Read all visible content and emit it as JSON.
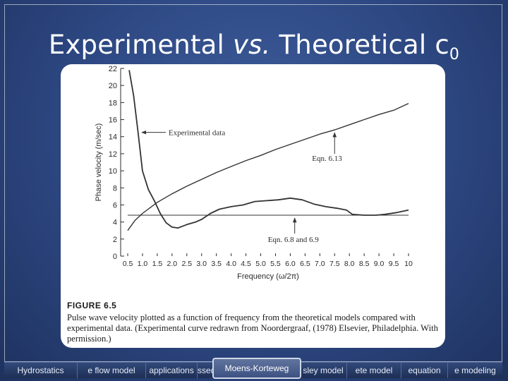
{
  "slide": {
    "title_main": "Experimental ",
    "title_vs": "vs.",
    "title_rest": " Theoretical c",
    "title_sub": "0"
  },
  "figure": {
    "label": "FIGURE 6.5",
    "caption": "Pulse wave velocity plotted as a function of frequency from the theoretical models compared with experimental data. (Experimental curve redrawn from Noordergraaf, (1978) Elsevier, Philadelphia. With permission.)"
  },
  "chart_data": {
    "type": "line",
    "xlabel": "Frequency (ω/2π)",
    "ylabel": "Phase velocity (m/sec)",
    "xlim": [
      0.5,
      10
    ],
    "ylim": [
      0,
      22
    ],
    "xticks": [
      "0.5",
      "1.0",
      "1.5",
      "2.0",
      "2.5",
      "3.0",
      "3.5",
      "4.0",
      "4.5",
      "5.0",
      "5.5",
      "6.0",
      "6.5",
      "7.0",
      "7.5",
      "8.0",
      "8.5",
      "9.0",
      "9.5",
      "10"
    ],
    "yticks": [
      "0",
      "2",
      "4",
      "6",
      "8",
      "10",
      "12",
      "14",
      "16",
      "18",
      "20",
      "22"
    ],
    "series": [
      {
        "name": "Experimental data",
        "x": [
          0.55,
          0.7,
          0.85,
          1.0,
          1.2,
          1.4,
          1.6,
          1.8,
          2.0,
          2.2,
          2.5,
          2.8,
          3.0,
          3.3,
          3.6,
          4.0,
          4.4,
          4.8,
          5.2,
          5.6,
          6.0,
          6.4,
          6.8,
          7.2,
          7.6,
          7.9,
          8.1,
          8.5,
          8.9,
          9.2,
          9.6,
          10.0
        ],
        "y": [
          21.8,
          18.8,
          14.5,
          10.0,
          7.8,
          6.5,
          5.0,
          3.9,
          3.4,
          3.3,
          3.7,
          4.0,
          4.3,
          5.0,
          5.5,
          5.8,
          6.0,
          6.4,
          6.5,
          6.6,
          6.8,
          6.6,
          6.1,
          5.8,
          5.6,
          5.4,
          4.9,
          4.8,
          4.8,
          4.9,
          5.1,
          5.4
        ]
      },
      {
        "name": "Eqn. 6.13",
        "x": [
          0.5,
          0.75,
          1.0,
          1.5,
          2.0,
          2.5,
          3.0,
          3.5,
          4.0,
          4.5,
          5.0,
          5.5,
          6.0,
          6.5,
          7.0,
          7.5,
          8.0,
          8.5,
          9.0,
          9.5,
          10.0
        ],
        "y": [
          3.0,
          4.2,
          5.0,
          6.3,
          7.3,
          8.2,
          9.0,
          9.8,
          10.5,
          11.2,
          11.8,
          12.5,
          13.1,
          13.7,
          14.3,
          14.8,
          15.4,
          16.0,
          16.6,
          17.1,
          17.9
        ]
      },
      {
        "name": "Eqn. 6.8 and 6.9",
        "x": [
          0.5,
          10.0
        ],
        "y": [
          4.8,
          4.8
        ]
      }
    ],
    "annotations": [
      {
        "text": "Experimental data",
        "series": 0
      },
      {
        "text": "Eqn. 6.13",
        "series": 1
      },
      {
        "text": "Eqn. 6.8 and 6.9",
        "series": 2
      }
    ]
  },
  "nav": {
    "items": [
      "Hydrostatics",
      "e flow model",
      "applications",
      "ssed",
      "Moens-Korteweg",
      "sley model",
      "ete model",
      "equation",
      "e modeling"
    ],
    "active": "Moens-Korteweg"
  }
}
